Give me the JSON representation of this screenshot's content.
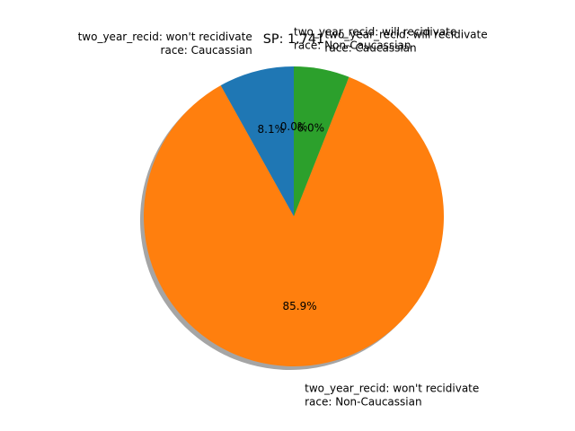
{
  "chart_data": {
    "type": "pie",
    "title": "SP: 1.741",
    "start_angle_deg": 90,
    "direction": "counterclockwise",
    "shadow": true,
    "slices": [
      {
        "label": "two_year_recid: won't recidivate\nrace: Caucassian",
        "value": 8.1,
        "pct_label": "8.1%",
        "color": "#1f77b4"
      },
      {
        "label": "two_year_recid: won't recidivate\nrace: Non-Caucassian",
        "value": 85.9,
        "pct_label": "85.9%",
        "color": "#ff7f0e"
      },
      {
        "label": "two_year_recid: will recidivate\nrace: Caucassian",
        "value": 6.0,
        "pct_label": "6.0%",
        "color": "#2ca02c"
      },
      {
        "label": "two_year_recid: will recidivate\nrace: Non-Caucassian",
        "value": 0.0,
        "pct_label": "0.0%",
        "color": "#d62728"
      }
    ]
  }
}
